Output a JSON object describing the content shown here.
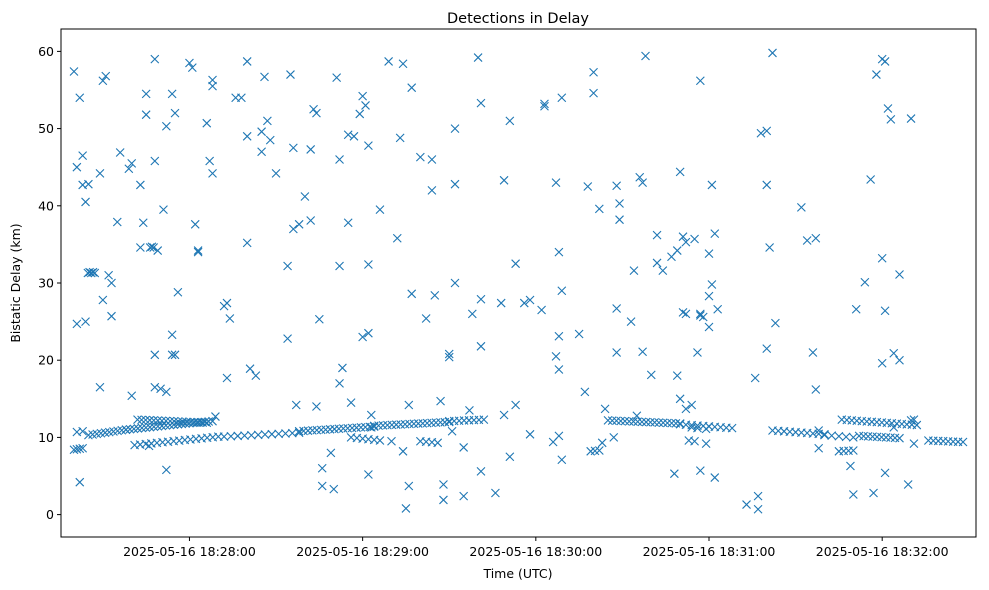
{
  "chart_data": {
    "type": "scatter",
    "title": "Detections in Delay",
    "xlabel": "Time (UTC)",
    "ylabel": "Bistatic Delay (km)",
    "x_units": "seconds after 2025-05-16 18:27:00",
    "x_ticks": [
      {
        "value": 60,
        "label": "2025-05-16 18:28:00"
      },
      {
        "value": 120,
        "label": "2025-05-16 18:29:00"
      },
      {
        "value": 180,
        "label": "2025-05-16 18:30:00"
      },
      {
        "value": 240,
        "label": "2025-05-16 18:31:00"
      },
      {
        "value": 300,
        "label": "2025-05-16 18:32:00"
      }
    ],
    "y_ticks": [
      0,
      10,
      20,
      30,
      40,
      50,
      60
    ],
    "xlim": [
      15.5,
      332.5
    ],
    "ylim": [
      -2.9,
      62.9
    ],
    "marker": "x",
    "color": "#1f77b4",
    "grid": false,
    "track_segments": [
      {
        "x0": 20,
        "y0": 8.4,
        "x1": 23,
        "y1": 8.6,
        "n": 4
      },
      {
        "x0": 21,
        "y0": 10.7,
        "x1": 23,
        "y1": 10.8,
        "n": 2
      },
      {
        "x0": 25,
        "y0": 10.3,
        "x1": 38,
        "y1": 11.0,
        "n": 10
      },
      {
        "x0": 38,
        "y0": 11.0,
        "x1": 56,
        "y1": 11.7,
        "n": 14
      },
      {
        "x0": 56,
        "y0": 11.7,
        "x1": 68,
        "y1": 12.1,
        "n": 10
      },
      {
        "x0": 42,
        "y0": 12.3,
        "x1": 66,
        "y1": 11.9,
        "n": 18
      },
      {
        "x0": 41,
        "y0": 9.0,
        "x1": 70,
        "y1": 10.1,
        "n": 16
      },
      {
        "x0": 72,
        "y0": 10.1,
        "x1": 98,
        "y1": 10.6,
        "n": 12
      },
      {
        "x0": 98,
        "y0": 10.8,
        "x1": 124,
        "y1": 11.4,
        "n": 18
      },
      {
        "x0": 124,
        "y0": 11.5,
        "x1": 150,
        "y1": 12.0,
        "n": 18
      },
      {
        "x0": 150,
        "y0": 12.1,
        "x1": 162,
        "y1": 12.3,
        "n": 8
      },
      {
        "x0": 116,
        "y0": 10.0,
        "x1": 126,
        "y1": 9.6,
        "n": 6
      },
      {
        "x0": 140,
        "y0": 9.5,
        "x1": 146,
        "y1": 9.3,
        "n": 4
      },
      {
        "x0": 199,
        "y0": 8.2,
        "x1": 202,
        "y1": 8.3,
        "n": 3
      },
      {
        "x0": 205,
        "y0": 12.2,
        "x1": 230,
        "y1": 11.8,
        "n": 18
      },
      {
        "x0": 230,
        "y0": 11.7,
        "x1": 248,
        "y1": 11.2,
        "n": 10
      },
      {
        "x0": 262,
        "y0": 10.9,
        "x1": 280,
        "y1": 10.4,
        "n": 10
      },
      {
        "x0": 280,
        "y0": 10.3,
        "x1": 290,
        "y1": 10.0,
        "n": 5
      },
      {
        "x0": 286,
        "y0": 12.3,
        "x1": 312,
        "y1": 11.6,
        "n": 16
      },
      {
        "x0": 292,
        "y0": 10.2,
        "x1": 306,
        "y1": 9.9,
        "n": 10
      },
      {
        "x0": 285,
        "y0": 8.2,
        "x1": 290,
        "y1": 8.3,
        "n": 4
      },
      {
        "x0": 316,
        "y0": 9.6,
        "x1": 328,
        "y1": 9.4,
        "n": 8
      }
    ],
    "clusters": [
      {
        "x": 26,
        "y": 31.3,
        "n": 5
      },
      {
        "x": 47,
        "y": 34.6,
        "n": 3
      }
    ],
    "noise_points": [
      [
        20,
        57.4
      ],
      [
        21,
        24.7
      ],
      [
        21,
        45
      ],
      [
        22,
        4.2
      ],
      [
        22,
        54
      ],
      [
        23,
        46.5
      ],
      [
        24,
        25
      ],
      [
        23,
        42.7
      ],
      [
        24,
        40.5
      ],
      [
        25,
        42.8
      ],
      [
        29,
        16.5
      ],
      [
        29,
        44.2
      ],
      [
        30,
        27.8
      ],
      [
        30,
        56.2
      ],
      [
        31,
        56.8
      ],
      [
        32,
        31
      ],
      [
        33,
        25.7
      ],
      [
        33,
        30
      ],
      [
        35,
        37.9
      ],
      [
        36,
        46.9
      ],
      [
        39,
        44.8
      ],
      [
        40,
        45.5
      ],
      [
        40,
        15.4
      ],
      [
        43,
        34.6
      ],
      [
        43,
        42.7
      ],
      [
        44,
        37.8
      ],
      [
        45,
        54.5
      ],
      [
        45,
        51.8
      ],
      [
        46,
        8.9
      ],
      [
        48,
        16.5
      ],
      [
        48,
        59
      ],
      [
        48,
        45.8
      ],
      [
        49,
        34.2
      ],
      [
        51,
        39.5
      ],
      [
        52,
        50.3
      ],
      [
        52,
        5.8
      ],
      [
        54,
        54.5
      ],
      [
        54,
        23.3
      ],
      [
        55,
        52
      ],
      [
        56,
        28.8
      ],
      [
        55,
        20.7
      ],
      [
        54,
        20.7
      ],
      [
        48,
        20.7
      ],
      [
        50,
        16.3
      ],
      [
        52,
        15.9
      ],
      [
        60,
        58.5
      ],
      [
        61,
        57.9
      ],
      [
        62,
        37.6
      ],
      [
        63,
        34.2
      ],
      [
        63,
        34
      ],
      [
        66,
        50.7
      ],
      [
        67,
        45.8
      ],
      [
        68,
        44.2
      ],
      [
        68,
        55.5
      ],
      [
        68,
        56.3
      ],
      [
        69,
        12.7
      ],
      [
        72,
        27
      ],
      [
        73,
        27.4
      ],
      [
        73,
        17.7
      ],
      [
        74,
        25.4
      ],
      [
        76,
        54
      ],
      [
        78,
        54
      ],
      [
        80,
        35.2
      ],
      [
        80,
        58.7
      ],
      [
        80,
        49
      ],
      [
        81,
        18.9
      ],
      [
        83,
        18
      ],
      [
        85,
        47
      ],
      [
        85,
        49.6
      ],
      [
        86,
        56.7
      ],
      [
        87,
        51
      ],
      [
        88,
        48.5
      ],
      [
        90,
        44.2
      ],
      [
        94,
        32.2
      ],
      [
        94,
        22.8
      ],
      [
        95,
        57
      ],
      [
        96,
        37
      ],
      [
        96,
        47.5
      ],
      [
        97,
        14.2
      ],
      [
        98,
        37.6
      ],
      [
        100,
        41.2
      ],
      [
        102,
        47.3
      ],
      [
        102,
        38.1
      ],
      [
        103,
        52.5
      ],
      [
        104,
        52
      ],
      [
        104,
        14
      ],
      [
        105,
        25.3
      ],
      [
        106,
        6
      ],
      [
        106,
        3.7
      ],
      [
        109,
        8
      ],
      [
        110,
        3.3
      ],
      [
        111,
        56.6
      ],
      [
        112,
        32.2
      ],
      [
        112,
        46
      ],
      [
        112,
        17
      ],
      [
        113,
        19
      ],
      [
        115,
        37.8
      ],
      [
        115,
        49.2
      ],
      [
        116,
        14.5
      ],
      [
        117,
        49
      ],
      [
        119,
        51.9
      ],
      [
        120,
        54.2
      ],
      [
        120,
        23
      ],
      [
        121,
        53
      ],
      [
        122,
        23.5
      ],
      [
        122,
        32.4
      ],
      [
        122,
        47.8
      ],
      [
        122,
        5.2
      ],
      [
        123,
        12.9
      ],
      [
        123,
        11.3
      ],
      [
        126,
        39.5
      ],
      [
        129,
        58.7
      ],
      [
        130,
        9.5
      ],
      [
        132,
        35.8
      ],
      [
        133,
        48.8
      ],
      [
        134,
        8.2
      ],
      [
        134,
        58.4
      ],
      [
        135,
        0.8
      ],
      [
        136,
        3.7
      ],
      [
        136,
        14.2
      ],
      [
        137,
        55.3
      ],
      [
        137,
        28.6
      ],
      [
        140,
        46.3
      ],
      [
        142,
        25.4
      ],
      [
        144,
        42
      ],
      [
        144,
        46
      ],
      [
        145,
        28.4
      ],
      [
        147,
        14.7
      ],
      [
        148,
        1.9
      ],
      [
        148,
        3.9
      ],
      [
        150,
        20.8
      ],
      [
        150,
        20.4
      ],
      [
        151,
        10.8
      ],
      [
        152,
        30
      ],
      [
        152,
        50
      ],
      [
        152,
        42.8
      ],
      [
        155,
        8.7
      ],
      [
        155,
        2.4
      ],
      [
        157,
        13.5
      ],
      [
        158,
        26
      ],
      [
        160,
        59.2
      ],
      [
        161,
        53.3
      ],
      [
        161,
        21.8
      ],
      [
        161,
        27.9
      ],
      [
        161,
        5.6
      ],
      [
        166,
        2.8
      ],
      [
        168,
        27.4
      ],
      [
        169,
        43.3
      ],
      [
        169,
        12.9
      ],
      [
        171,
        7.5
      ],
      [
        171,
        51
      ],
      [
        173,
        32.5
      ],
      [
        173,
        14.2
      ],
      [
        176,
        27.4
      ],
      [
        178,
        27.8
      ],
      [
        178,
        10.4
      ],
      [
        182,
        26.5
      ],
      [
        183,
        53.2
      ],
      [
        183,
        52.9
      ],
      [
        186,
        9.4
      ],
      [
        187,
        43
      ],
      [
        187,
        20.5
      ],
      [
        188,
        10.2
      ],
      [
        188,
        18.8
      ],
      [
        188,
        34
      ],
      [
        188,
        23.1
      ],
      [
        189,
        29
      ],
      [
        189,
        54
      ],
      [
        189,
        7.1
      ],
      [
        195,
        23.4
      ],
      [
        197,
        15.9
      ],
      [
        198,
        42.5
      ],
      [
        200,
        57.3
      ],
      [
        200,
        54.6
      ],
      [
        202,
        39.6
      ],
      [
        203,
        9.3
      ],
      [
        204,
        13.7
      ],
      [
        207,
        10
      ],
      [
        208,
        42.6
      ],
      [
        208,
        26.7
      ],
      [
        208,
        21
      ],
      [
        209,
        38.2
      ],
      [
        209,
        40.3
      ],
      [
        213,
        25
      ],
      [
        214,
        31.6
      ],
      [
        215,
        12.8
      ],
      [
        216,
        43.7
      ],
      [
        217,
        21.1
      ],
      [
        217,
        43
      ],
      [
        218,
        59.4
      ],
      [
        220,
        18.1
      ],
      [
        222,
        36.2
      ],
      [
        222,
        32.6
      ],
      [
        224,
        31.6
      ],
      [
        227,
        33.4
      ],
      [
        228,
        5.3
      ],
      [
        229,
        34.2
      ],
      [
        229,
        18
      ],
      [
        230,
        44.4
      ],
      [
        230,
        15
      ],
      [
        231,
        36
      ],
      [
        231,
        26.2
      ],
      [
        232,
        13.7
      ],
      [
        232,
        35.3
      ],
      [
        232,
        26
      ],
      [
        233,
        9.6
      ],
      [
        234,
        11.3
      ],
      [
        234,
        14.2
      ],
      [
        235,
        35.7
      ],
      [
        235,
        9.5
      ],
      [
        236,
        11.2
      ],
      [
        236,
        21
      ],
      [
        237,
        26
      ],
      [
        237,
        5.7
      ],
      [
        237,
        56.2
      ],
      [
        237,
        25.8
      ],
      [
        238,
        25.6
      ],
      [
        239,
        11.1
      ],
      [
        239,
        9.2
      ],
      [
        240,
        28.3
      ],
      [
        240,
        24.3
      ],
      [
        240,
        33.8
      ],
      [
        241,
        29.8
      ],
      [
        241,
        42.7
      ],
      [
        242,
        4.8
      ],
      [
        242,
        36.4
      ],
      [
        243,
        26.6
      ],
      [
        253,
        1.3
      ],
      [
        256,
        17.7
      ],
      [
        257,
        2.4
      ],
      [
        257,
        0.7
      ],
      [
        258,
        49.4
      ],
      [
        260,
        49.7
      ],
      [
        260,
        42.7
      ],
      [
        260,
        21.5
      ],
      [
        261,
        34.6
      ],
      [
        262,
        59.8
      ],
      [
        263,
        24.8
      ],
      [
        272,
        39.8
      ],
      [
        274,
        35.5
      ],
      [
        276,
        21
      ],
      [
        277,
        16.2
      ],
      [
        277,
        35.8
      ],
      [
        278,
        8.6
      ],
      [
        278,
        10.9
      ],
      [
        289,
        6.3
      ],
      [
        290,
        2.6
      ],
      [
        291,
        26.6
      ],
      [
        294,
        30.1
      ],
      [
        296,
        43.4
      ],
      [
        297,
        2.8
      ],
      [
        298,
        57
      ],
      [
        300,
        59
      ],
      [
        300,
        33.2
      ],
      [
        300,
        19.6
      ],
      [
        301,
        26.4
      ],
      [
        301,
        58.7
      ],
      [
        301,
        5.4
      ],
      [
        302,
        52.6
      ],
      [
        303,
        51.2
      ],
      [
        304,
        20.9
      ],
      [
        304,
        11.3
      ],
      [
        306,
        20
      ],
      [
        306,
        31.1
      ],
      [
        309,
        3.9
      ],
      [
        310,
        51.3
      ],
      [
        310,
        12.2
      ],
      [
        311,
        12.3
      ],
      [
        311,
        9.2
      ]
    ]
  }
}
